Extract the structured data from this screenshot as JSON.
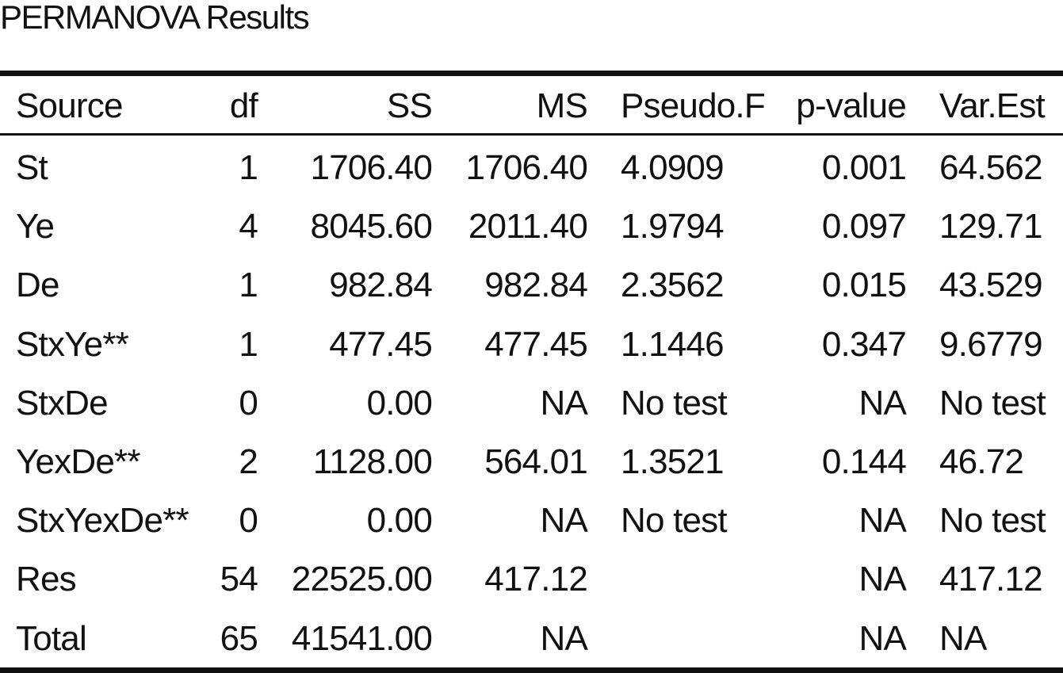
{
  "header": {
    "title": "PERMANOVA Results"
  },
  "table": {
    "columns": [
      "Source",
      "df",
      "SS",
      "MS",
      "Pseudo.F",
      "p-value",
      "Var.Est"
    ],
    "rows": [
      [
        "St",
        "1",
        "1706.40",
        "1706.40",
        "4.0909",
        "0.001",
        "64.562"
      ],
      [
        "Ye",
        "4",
        "8045.60",
        "2011.40",
        "1.9794",
        "0.097",
        "129.71"
      ],
      [
        "De",
        "1",
        "982.84",
        "982.84",
        "2.3562",
        "0.015",
        "43.529"
      ],
      [
        "StxYe**",
        "1",
        "477.45",
        "477.45",
        "1.1446",
        "0.347",
        "9.6779"
      ],
      [
        "StxDe",
        "0",
        "0.00",
        "NA",
        "No test",
        "NA",
        "No test"
      ],
      [
        "YexDe**",
        "2",
        "1128.00",
        "564.01",
        "1.3521",
        "0.144",
        "46.72"
      ],
      [
        "StxYexDe**",
        "0",
        "0.00",
        "NA",
        "No test",
        "NA",
        "No test"
      ],
      [
        "Res",
        "54",
        "22525.00",
        "417.12",
        null,
        "NA",
        "417.12"
      ],
      [
        "Total",
        "65",
        "41541.00",
        "NA",
        null,
        "NA",
        "NA"
      ]
    ]
  }
}
